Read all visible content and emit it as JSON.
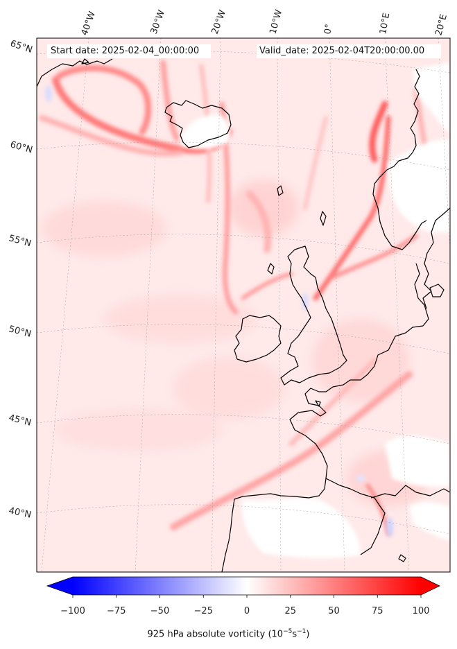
{
  "header": {
    "start_date": "Start date: 2025-02-04_00:00:00",
    "valid_date": "Valid_date: 2025-02-04T20:00:00.00"
  },
  "longitude_labels": [
    "40°W",
    "30°W",
    "20°W",
    "10°W",
    "0°",
    "10°E",
    "20°E"
  ],
  "latitude_labels": [
    "65°N",
    "60°N",
    "55°N",
    "50°N",
    "45°N",
    "40°N"
  ],
  "colorbar": {
    "ticks": [
      "−100",
      "−75",
      "−50",
      "−25",
      "0",
      "25",
      "50",
      "75",
      "100"
    ],
    "label_main": "925 hPa absolute vorticity (10",
    "label_exp1": "−5",
    "label_mid": "s",
    "label_exp2": "−1",
    "label_end": ")",
    "min": -100,
    "max": 100,
    "low_color": "#0000ff",
    "mid_color": "#ffffff",
    "high_color": "#ff0000"
  }
}
